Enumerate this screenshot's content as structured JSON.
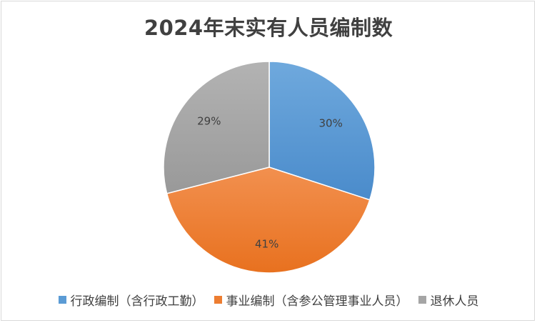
{
  "chart_data": {
    "type": "pie",
    "title": "2024年末实有人员编制数",
    "categories": [
      "行政编制（含行政工勤）",
      "事业编制（含参公管理事业人员）",
      "退休人员"
    ],
    "values": [
      30,
      41,
      29
    ],
    "data_labels": [
      "30%",
      "41%",
      "29%"
    ],
    "colors": [
      "#5b9bd5",
      "#ed7d31",
      "#a5a5a5"
    ],
    "legend_position": "bottom",
    "start_angle": "12 o'clock, clockwise"
  }
}
